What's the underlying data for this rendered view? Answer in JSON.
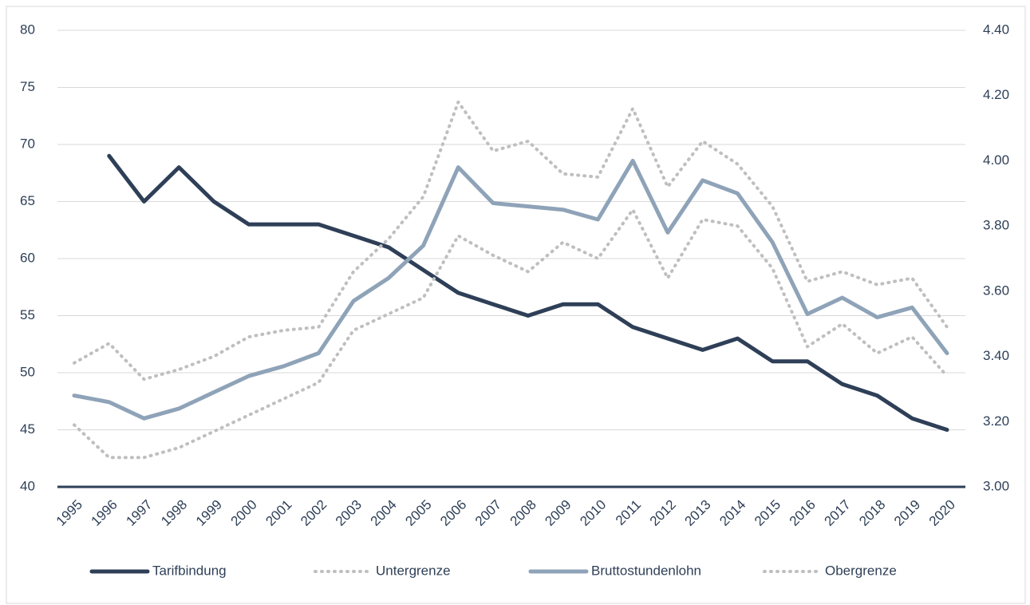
{
  "chart_data": {
    "type": "line",
    "categories": [
      "1995",
      "1996",
      "1997",
      "1998",
      "1999",
      "2000",
      "2001",
      "2002",
      "2003",
      "2004",
      "2005",
      "2006",
      "2007",
      "2008",
      "2009",
      "2010",
      "2011",
      "2012",
      "2013",
      "2014",
      "2015",
      "2016",
      "2017",
      "2018",
      "2019",
      "2020"
    ],
    "series": [
      {
        "name": "Tarifbindung",
        "color": "#2e3f57",
        "style": "solid",
        "axis": "y",
        "values": [
          null,
          69,
          65,
          68,
          65,
          63,
          63,
          63,
          62,
          61,
          59,
          57,
          56,
          55,
          56,
          56,
          54,
          53,
          52,
          53,
          51,
          51,
          49,
          48,
          46,
          45
        ]
      },
      {
        "name": "Untergrenze",
        "color": "#bfbfbf",
        "style": "dotted",
        "axis": "y2",
        "values": [
          3.19,
          3.09,
          3.09,
          3.12,
          3.17,
          3.22,
          3.27,
          3.32,
          3.48,
          3.53,
          3.58,
          3.77,
          3.71,
          3.66,
          3.75,
          3.7,
          3.85,
          3.64,
          3.82,
          3.8,
          3.67,
          3.43,
          3.5,
          3.41,
          3.46,
          3.34
        ]
      },
      {
        "name": "Bruttostundenlohn",
        "color": "#8fa3b8",
        "style": "solid",
        "axis": "y2",
        "values": [
          3.28,
          3.26,
          3.21,
          3.24,
          3.29,
          3.34,
          3.37,
          3.41,
          3.57,
          3.64,
          3.74,
          3.98,
          3.87,
          3.86,
          3.85,
          3.82,
          4.0,
          3.78,
          3.94,
          3.9,
          3.75,
          3.53,
          3.58,
          3.52,
          3.55,
          3.41
        ]
      },
      {
        "name": "Obergrenze",
        "color": "#bfbfbf",
        "style": "dotted",
        "axis": "y2",
        "values": [
          3.38,
          3.44,
          3.33,
          3.36,
          3.4,
          3.46,
          3.48,
          3.49,
          3.66,
          3.76,
          3.89,
          4.18,
          4.03,
          4.06,
          3.96,
          3.95,
          4.16,
          3.92,
          4.06,
          3.99,
          3.86,
          3.63,
          3.66,
          3.62,
          3.64,
          3.49
        ]
      }
    ],
    "ylim": [
      40,
      80
    ],
    "yticks": [
      40,
      45,
      50,
      55,
      60,
      65,
      70,
      75,
      80
    ],
    "y2lim": [
      3.0,
      4.4
    ],
    "y2ticks": [
      {
        "value": 3.0,
        "label": "3.00"
      },
      {
        "value": 3.2,
        "label": "3.20"
      },
      {
        "value": 3.4,
        "label": "3.40"
      },
      {
        "value": 3.6,
        "label": "3.60"
      },
      {
        "value": 3.8,
        "label": "3.80"
      },
      {
        "value": 4.0,
        "label": "4.00"
      },
      {
        "value": 4.2,
        "label": "4.20"
      },
      {
        "value": 4.4,
        "label": "4.40"
      }
    ],
    "grid": true,
    "legend": "bottom"
  }
}
